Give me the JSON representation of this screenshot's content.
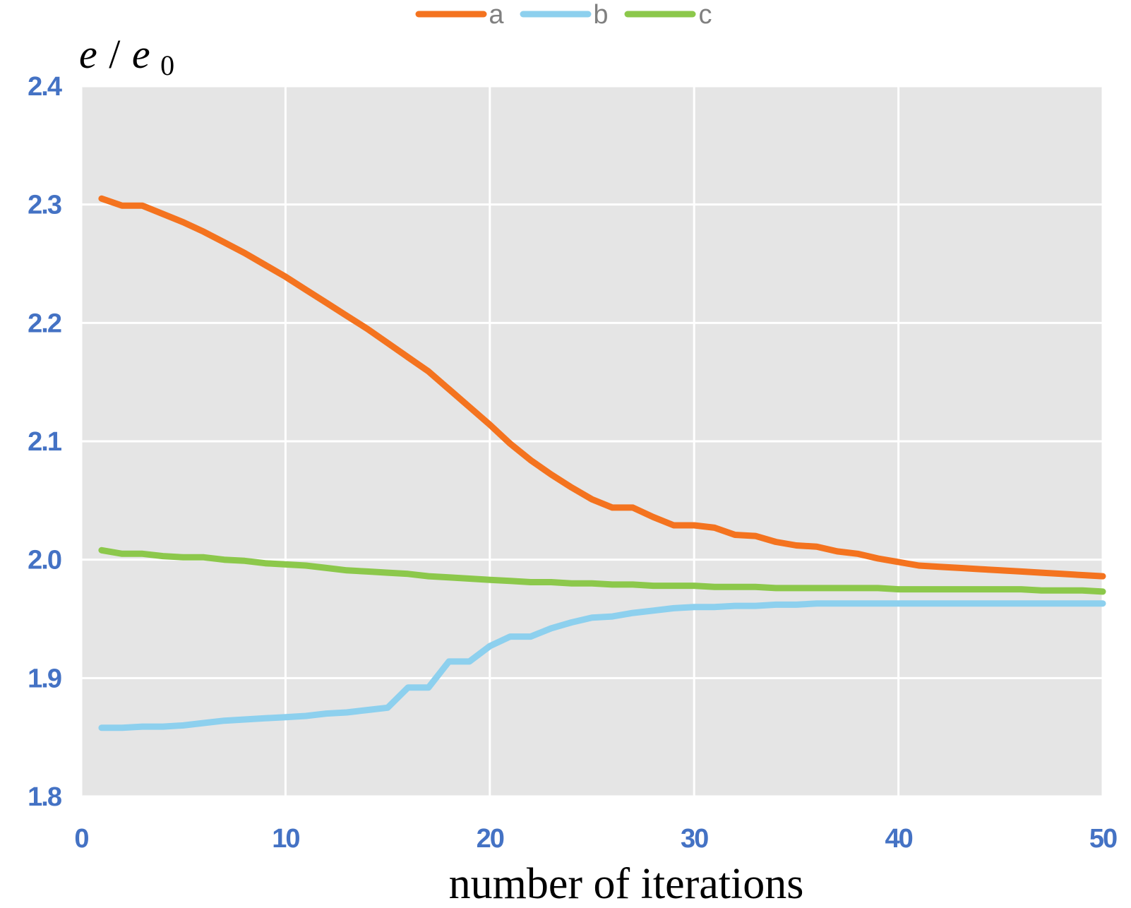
{
  "chart_data": {
    "type": "line",
    "xlabel": "number of iterations",
    "ylabel": {
      "base": "e",
      "denominator_base": "e",
      "denominator_sub": "0"
    },
    "xlim": [
      0,
      50
    ],
    "ylim": [
      1.8,
      2.4
    ],
    "x_ticks": [
      "0",
      "10",
      "20",
      "30",
      "40",
      "50"
    ],
    "y_ticks": [
      "1.8",
      "1.9",
      "2.0",
      "2.1",
      "2.2",
      "2.3",
      "2.4"
    ],
    "grid": true,
    "legend_position": "top-center",
    "background_color": "#e5e5e5",
    "series": [
      {
        "name": "a",
        "color": "#f4731f",
        "x": [
          1,
          2,
          3,
          4,
          5,
          6,
          7,
          8,
          9,
          10,
          11,
          12,
          13,
          14,
          15,
          16,
          17,
          18,
          19,
          20,
          21,
          22,
          23,
          24,
          25,
          26,
          27,
          28,
          29,
          30,
          31,
          32,
          33,
          34,
          35,
          36,
          37,
          38,
          39,
          40,
          41,
          42,
          43,
          44,
          45,
          46,
          47,
          48,
          49,
          50
        ],
        "values": [
          2.305,
          2.299,
          2.299,
          2.292,
          2.285,
          2.277,
          2.268,
          2.259,
          2.249,
          2.239,
          2.228,
          2.217,
          2.206,
          2.195,
          2.183,
          2.171,
          2.159,
          2.144,
          2.129,
          2.114,
          2.098,
          2.084,
          2.072,
          2.061,
          2.051,
          2.044,
          2.044,
          2.036,
          2.029,
          2.029,
          2.027,
          2.021,
          2.02,
          2.015,
          2.012,
          2.011,
          2.007,
          2.005,
          2.001,
          1.998,
          1.995,
          1.994,
          1.993,
          1.992,
          1.991,
          1.99,
          1.989,
          1.988,
          1.987,
          1.986
        ]
      },
      {
        "name": "b",
        "color": "#8dd0ee",
        "x": [
          1,
          2,
          3,
          4,
          5,
          6,
          7,
          8,
          9,
          10,
          11,
          12,
          13,
          14,
          15,
          16,
          17,
          18,
          19,
          20,
          21,
          22,
          23,
          24,
          25,
          26,
          27,
          28,
          29,
          30,
          31,
          32,
          33,
          34,
          35,
          36,
          37,
          38,
          39,
          40,
          41,
          42,
          43,
          44,
          45,
          46,
          47,
          48,
          49,
          50
        ],
        "values": [
          1.858,
          1.858,
          1.859,
          1.859,
          1.86,
          1.862,
          1.864,
          1.865,
          1.866,
          1.867,
          1.868,
          1.87,
          1.871,
          1.873,
          1.875,
          1.892,
          1.892,
          1.914,
          1.914,
          1.927,
          1.935,
          1.935,
          1.942,
          1.947,
          1.951,
          1.952,
          1.955,
          1.957,
          1.959,
          1.96,
          1.96,
          1.961,
          1.961,
          1.962,
          1.962,
          1.963,
          1.963,
          1.963,
          1.963,
          1.963,
          1.963,
          1.963,
          1.963,
          1.963,
          1.963,
          1.963,
          1.963,
          1.963,
          1.963,
          1.963
        ]
      },
      {
        "name": "c",
        "color": "#8cc84b",
        "x": [
          1,
          2,
          3,
          4,
          5,
          6,
          7,
          8,
          9,
          10,
          11,
          12,
          13,
          14,
          15,
          16,
          17,
          18,
          19,
          20,
          21,
          22,
          23,
          24,
          25,
          26,
          27,
          28,
          29,
          30,
          31,
          32,
          33,
          34,
          35,
          36,
          37,
          38,
          39,
          40,
          41,
          42,
          43,
          44,
          45,
          46,
          47,
          48,
          49,
          50
        ],
        "values": [
          2.008,
          2.005,
          2.005,
          2.003,
          2.002,
          2.002,
          2.0,
          1.999,
          1.997,
          1.996,
          1.995,
          1.993,
          1.991,
          1.99,
          1.989,
          1.988,
          1.986,
          1.985,
          1.984,
          1.983,
          1.982,
          1.981,
          1.981,
          1.98,
          1.98,
          1.979,
          1.979,
          1.978,
          1.978,
          1.978,
          1.977,
          1.977,
          1.977,
          1.976,
          1.976,
          1.976,
          1.976,
          1.976,
          1.976,
          1.975,
          1.975,
          1.975,
          1.975,
          1.975,
          1.975,
          1.975,
          1.974,
          1.974,
          1.974,
          1.973
        ]
      }
    ]
  }
}
